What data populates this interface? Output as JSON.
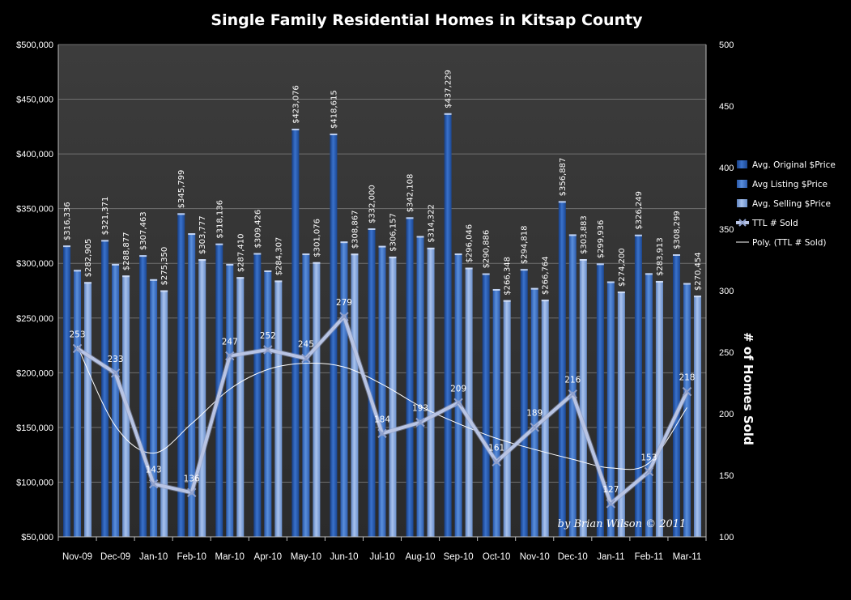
{
  "chart_data": {
    "type": "bar",
    "title": "Single Family Residential Homes in Kitsap County",
    "categories": [
      "Nov-09",
      "Dec-09",
      "Jan-10",
      "Feb-10",
      "Mar-10",
      "Apr-10",
      "May-10",
      "Jun-10",
      "Jul-10",
      "Aug-10",
      "Sep-10",
      "Oct-10",
      "Nov-10",
      "Dec-10",
      "Jan-11",
      "Feb-11",
      "Mar-11"
    ],
    "y_left": {
      "min": 50000,
      "max": 500000,
      "ticks": [
        {
          "value": 50000,
          "label": "$50,000"
        },
        {
          "value": 100000,
          "label": "$100,000"
        },
        {
          "value": 150000,
          "label": "$150,000"
        },
        {
          "value": 200000,
          "label": "$200,000"
        },
        {
          "value": 250000,
          "label": "$250,000"
        },
        {
          "value": 300000,
          "label": "$300,000"
        },
        {
          "value": 350000,
          "label": "$350,000"
        },
        {
          "value": 400000,
          "label": "$400,000"
        },
        {
          "value": 450000,
          "label": "$450,000"
        },
        {
          "value": 500000,
          "label": "$500,000"
        }
      ]
    },
    "y_right": {
      "min": 100,
      "max": 500,
      "label": "# of Homes Sold",
      "ticks": [
        {
          "value": 100,
          "label": "100"
        },
        {
          "value": 150,
          "label": "150"
        },
        {
          "value": 200,
          "label": "200"
        },
        {
          "value": 250,
          "label": "250"
        },
        {
          "value": 300,
          "label": "300"
        },
        {
          "value": 350,
          "label": "350"
        },
        {
          "value": 400,
          "label": "400"
        },
        {
          "value": 450,
          "label": "450"
        },
        {
          "value": 500,
          "label": "500"
        }
      ]
    },
    "grid": true,
    "legend_position": "right",
    "series": [
      {
        "name": "Avg. Original $Price",
        "type": "bar",
        "axis": "left",
        "color": "#2f62b8",
        "values": [
          316336,
          321371,
          307463,
          345799,
          318136,
          309426,
          423076,
          418615,
          332000,
          342108,
          437229,
          290886,
          294818,
          356887,
          299936,
          326249,
          308299
        ],
        "labels": [
          "$316,336",
          "$321,371",
          "$307,463",
          "$345,799",
          "$318,136",
          "$309,426",
          "$423,076",
          "$418,615",
          "$332,000",
          "$342,108",
          "$437,229",
          "$290,886",
          "$294,818",
          "$356,887",
          "$299,936",
          "$326,249",
          "$308,299"
        ]
      },
      {
        "name": "Avg Listing $Price",
        "type": "bar",
        "axis": "left",
        "color": "#4a7fd0",
        "values": [
          294000,
          299500,
          285500,
          327500,
          299500,
          293500,
          309000,
          320000,
          316000,
          325000,
          309000,
          276500,
          277500,
          326500,
          283500,
          291000,
          282000
        ],
        "labels": []
      },
      {
        "name": "Avg. Selling $Price",
        "type": "bar",
        "axis": "left",
        "color": "#8fb0e4",
        "values": [
          282905,
          288877,
          275350,
          303777,
          287410,
          284307,
          301076,
          308867,
          306157,
          314322,
          296046,
          266348,
          266764,
          303883,
          274200,
          283913,
          270454
        ],
        "labels": [
          "$282,905",
          "$288,877",
          "$275,350",
          "$303,777",
          "$287,410",
          "$284,307",
          "$301,076",
          "$308,867",
          "$306,157",
          "$314,322",
          "$296,046",
          "$266,348",
          "$266,764",
          "$303,883",
          "$274,200",
          "$283,913",
          "$270,454"
        ]
      },
      {
        "name": "TTL # Sold",
        "type": "line",
        "axis": "right",
        "color": "#b8c4e4",
        "values": [
          253,
          233,
          143,
          136,
          247,
          252,
          245,
          279,
          184,
          193,
          209,
          161,
          189,
          216,
          127,
          153,
          218
        ],
        "labels": [
          "253",
          "233",
          "143",
          "136",
          "247",
          "252",
          "245",
          "279",
          "184",
          "193",
          "209",
          "161",
          "189",
          "216",
          "127",
          "153",
          "218"
        ]
      },
      {
        "name": "Poly. (TTL # Sold)",
        "type": "trendline",
        "axis": "right",
        "color": "#ffffff",
        "values": [
          255,
          190,
          168,
          192,
          220,
          236,
          241,
          238,
          224,
          206,
          192,
          180,
          171,
          163,
          156,
          160,
          205
        ]
      }
    ],
    "annotation": "by Brian Wilson  © 2011"
  }
}
